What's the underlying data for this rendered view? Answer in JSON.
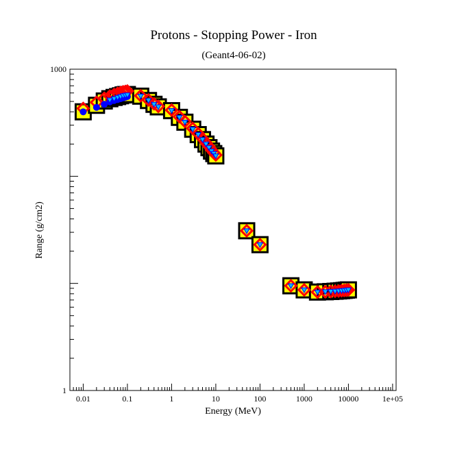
{
  "chart_data": {
    "type": "scatter",
    "title": "Protons - Stopping Power - Iron",
    "subtitle": "(Geant4-06-02)",
    "xlabel": "Energy (MeV)",
    "ylabel": "Range (g/cm2)",
    "xscale": "log",
    "yscale": "log",
    "xlim": [
      0.005,
      120000
    ],
    "ylim": [
      1,
      1000
    ],
    "x_ticks": [
      {
        "value": 0.01,
        "label": "0.01"
      },
      {
        "value": 0.1,
        "label": "0.1"
      },
      {
        "value": 1,
        "label": "1"
      },
      {
        "value": 10,
        "label": "10"
      },
      {
        "value": 100,
        "label": "100"
      },
      {
        "value": 1000,
        "label": "1000"
      },
      {
        "value": 10000,
        "label": "10000"
      },
      {
        "value": 100000,
        "label": "1e+05"
      }
    ],
    "y_ticks": [
      {
        "value": 1,
        "label": "1"
      },
      {
        "value": 1000,
        "label": "1000"
      }
    ],
    "grid": false,
    "legend": "none",
    "series": [
      {
        "marker": "square",
        "fill": "#ffff00",
        "stroke": "#000000",
        "x": [
          0.01,
          0.02,
          0.03,
          0.04,
          0.05,
          0.06,
          0.07,
          0.08,
          0.09,
          0.1,
          0.2,
          0.3,
          0.4,
          0.5,
          1,
          1.5,
          2,
          3,
          4,
          5,
          6,
          7,
          8,
          9,
          10,
          50,
          100,
          500,
          1000,
          2000,
          3000,
          4000,
          5000,
          6000,
          7000,
          8000,
          9000,
          10000
        ],
        "y": [
          400,
          460,
          505,
          530,
          545,
          555,
          565,
          575,
          580,
          580,
          560,
          510,
          470,
          445,
          410,
          355,
          320,
          275,
          245,
          220,
          200,
          185,
          172,
          163,
          155,
          31,
          23,
          9.5,
          8.7,
          8.3,
          8.35,
          8.4,
          8.45,
          8.5,
          8.55,
          8.6,
          8.65,
          8.7
        ]
      },
      {
        "marker": "diamond",
        "fill": "#ff0000",
        "stroke": "#ff0000",
        "x": [
          0.01,
          0.02,
          0.03,
          0.04,
          0.05,
          0.06,
          0.07,
          0.08,
          0.09,
          0.1,
          0.2,
          0.3,
          0.4,
          0.5,
          1,
          1.5,
          2,
          3,
          4,
          5,
          6,
          7,
          8,
          9,
          10,
          50,
          100,
          500,
          1000,
          2000,
          3000,
          4000,
          5000,
          6000,
          7000,
          8000,
          9000,
          10000
        ],
        "y": [
          430,
          490,
          535,
          560,
          580,
          595,
          605,
          615,
          620,
          625,
          565,
          515,
          475,
          450,
          415,
          360,
          325,
          280,
          250,
          225,
          205,
          190,
          176,
          166,
          158,
          31,
          23,
          9.5,
          8.7,
          8.3,
          8.35,
          8.4,
          8.45,
          8.5,
          8.55,
          8.6,
          8.65,
          8.7
        ]
      },
      {
        "marker": "circle",
        "fill": "#0000ff",
        "stroke": "#0000ff",
        "x": [
          0.01,
          0.02,
          0.03,
          0.04,
          0.05,
          0.06,
          0.07,
          0.08,
          0.09,
          0.1
        ],
        "y": [
          400,
          440,
          470,
          495,
          510,
          520,
          530,
          540,
          548,
          555
        ]
      },
      {
        "marker": "triangle-down",
        "fill": "#00bfff",
        "stroke": "#0000ff",
        "x": [
          0.04,
          0.05,
          0.06,
          0.07,
          0.08,
          0.09,
          0.1,
          0.2,
          0.3,
          0.4,
          0.5,
          1,
          1.5,
          2,
          3,
          4,
          5,
          6,
          7,
          8,
          9,
          10,
          50,
          100,
          500,
          1000,
          2000,
          3000,
          4000,
          5000,
          6000,
          7000,
          8000,
          9000,
          10000
        ],
        "y": [
          515,
          530,
          545,
          555,
          565,
          570,
          575,
          560,
          510,
          470,
          445,
          410,
          355,
          320,
          275,
          245,
          220,
          200,
          185,
          172,
          163,
          155,
          31,
          23,
          9.5,
          8.7,
          8.3,
          8.35,
          8.4,
          8.45,
          8.5,
          8.55,
          8.6,
          8.65,
          8.7
        ]
      }
    ]
  }
}
